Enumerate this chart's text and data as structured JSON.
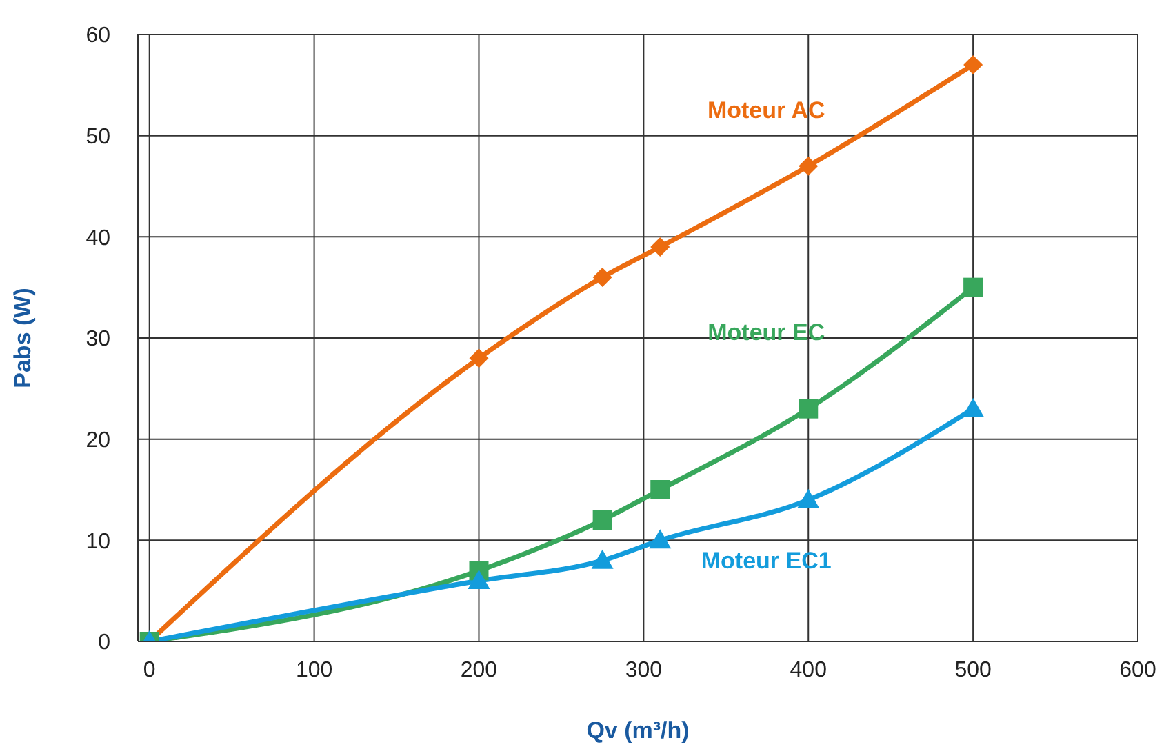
{
  "chart_data": {
    "type": "line",
    "xlabel": "Qv (m³/h)",
    "ylabel": "Pabs (W)",
    "x": [
      0,
      200,
      275,
      310,
      400,
      500
    ],
    "series": [
      {
        "name": "Moteur AC",
        "color": "#ec6c10",
        "marker": "diamond",
        "values": [
          0,
          28,
          36,
          39,
          47,
          57
        ]
      },
      {
        "name": "Moteur EC",
        "color": "#38a75c",
        "marker": "square",
        "values": [
          0,
          7,
          12,
          15,
          23,
          35
        ]
      },
      {
        "name": "Moteur EC1",
        "color": "#139cdc",
        "marker": "triangle",
        "values": [
          0,
          6,
          8,
          10,
          14,
          23
        ]
      }
    ],
    "xlim": [
      -7,
      600
    ],
    "xticks": [
      0,
      100,
      200,
      300,
      400,
      500,
      600
    ],
    "ylim": [
      0,
      60
    ],
    "yticks": [
      0,
      10,
      20,
      30,
      40,
      50,
      60
    ],
    "grid": true,
    "legend": false
  }
}
